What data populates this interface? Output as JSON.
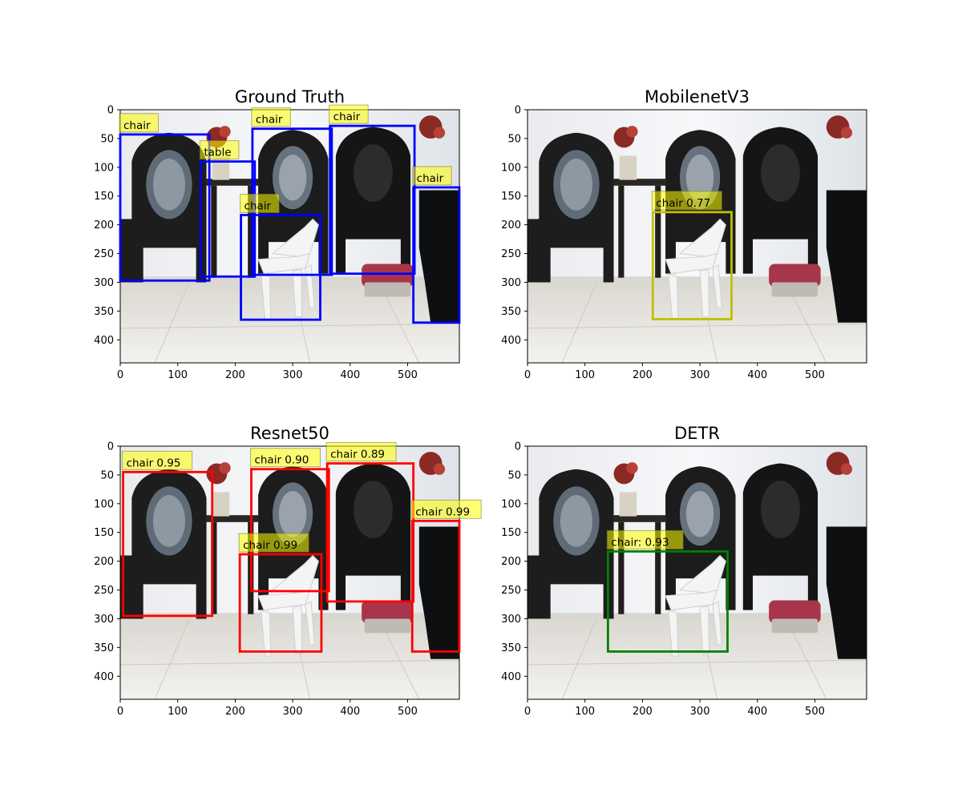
{
  "image_size": {
    "width": 590,
    "height": 440
  },
  "axis": {
    "x_ticks": [
      0,
      100,
      200,
      300,
      400,
      500
    ],
    "y_ticks": [
      0,
      50,
      100,
      150,
      200,
      250,
      300,
      350,
      400
    ]
  },
  "colors": {
    "ground_truth_box": "#0000ff",
    "mobilenet_box": "#bfbf00",
    "resnet_box": "#ff0000",
    "detr_box": "#008000",
    "label_bg": "#ffff00"
  },
  "panels": [
    {
      "title": "Ground Truth",
      "box_color": "#0000ff",
      "boxes": [
        {
          "label": "chair",
          "x1": 0,
          "y1": 43,
          "x2": 155,
          "y2": 297
        },
        {
          "label": "table",
          "x1": 140,
          "y1": 90,
          "x2": 234,
          "y2": 290
        },
        {
          "label": "chair",
          "x1": 230,
          "y1": 33,
          "x2": 368,
          "y2": 287
        },
        {
          "label": "chair",
          "x1": 365,
          "y1": 28,
          "x2": 512,
          "y2": 285
        },
        {
          "label": "chair",
          "x1": 510,
          "y1": 135,
          "x2": 590,
          "y2": 370
        },
        {
          "label": "chair",
          "x1": 210,
          "y1": 183,
          "x2": 348,
          "y2": 365
        }
      ]
    },
    {
      "title": "MobilenetV3",
      "box_color": "#bfbf00",
      "boxes": [
        {
          "label": "chair 0.77",
          "x1": 218,
          "y1": 178,
          "x2": 355,
          "y2": 364
        }
      ]
    },
    {
      "title": "Resnet50",
      "box_color": "#ff0000",
      "boxes": [
        {
          "label": "chair 0.95",
          "x1": 5,
          "y1": 45,
          "x2": 160,
          "y2": 295
        },
        {
          "label": "chair 0.90",
          "x1": 228,
          "y1": 40,
          "x2": 363,
          "y2": 252
        },
        {
          "label": "chair 0.89",
          "x1": 360,
          "y1": 30,
          "x2": 510,
          "y2": 270
        },
        {
          "label": "chair 0.99",
          "x1": 508,
          "y1": 130,
          "x2": 590,
          "y2": 357
        },
        {
          "label": "chair 0.99",
          "x1": 208,
          "y1": 188,
          "x2": 350,
          "y2": 357
        }
      ]
    },
    {
      "title": "DETR",
      "box_color": "#008000",
      "boxes": [
        {
          "label": "chair: 0.93",
          "x1": 140,
          "y1": 183,
          "x2": 348,
          "y2": 357
        }
      ]
    }
  ]
}
